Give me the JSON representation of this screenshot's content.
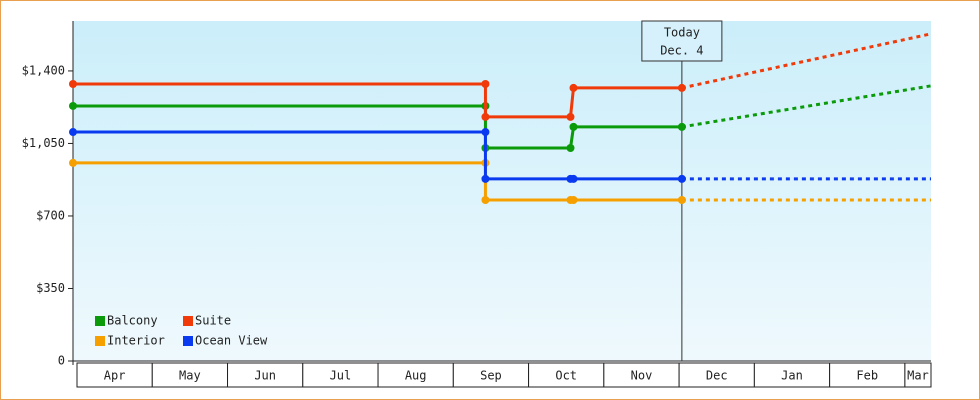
{
  "chart_data": {
    "type": "line",
    "categories": [
      "Apr",
      "May",
      "Jun",
      "Jul",
      "Aug",
      "Sep",
      "Oct",
      "Nov",
      "Dec",
      "Jan",
      "Feb",
      "Mar"
    ],
    "x": [
      0,
      5.48,
      5.48,
      6.61,
      6.65,
      8.09,
      11.4
    ],
    "xlim": [
      0,
      11.4
    ],
    "ylim": [
      0,
      1641
    ],
    "yticks": [
      0,
      {
        "value": 350,
        "label": "$350"
      },
      {
        "value": 700,
        "label": "$700"
      },
      {
        "value": 1050,
        "label": "$1,050"
      },
      {
        "value": 1400,
        "label": "$1,400"
      }
    ],
    "today_x": 8.09,
    "today_label": [
      "Today",
      "Dec. 4"
    ],
    "series": [
      {
        "name": "Balcony",
        "color": "#0a9a0a",
        "values": [
          1231,
          1231,
          1028,
          1028,
          1130,
          1130,
          1328
        ]
      },
      {
        "name": "Suite",
        "color": "#f03a0a",
        "values": [
          1337,
          1337,
          1178,
          1178,
          1318,
          1318,
          1579
        ]
      },
      {
        "name": "Interior",
        "color": "#f5a000",
        "values": [
          956,
          956,
          777,
          777,
          777,
          777,
          777
        ]
      },
      {
        "name": "Ocean View",
        "color": "#0a3af0",
        "values": [
          1105,
          1105,
          879,
          879,
          879,
          879,
          879
        ]
      }
    ]
  }
}
